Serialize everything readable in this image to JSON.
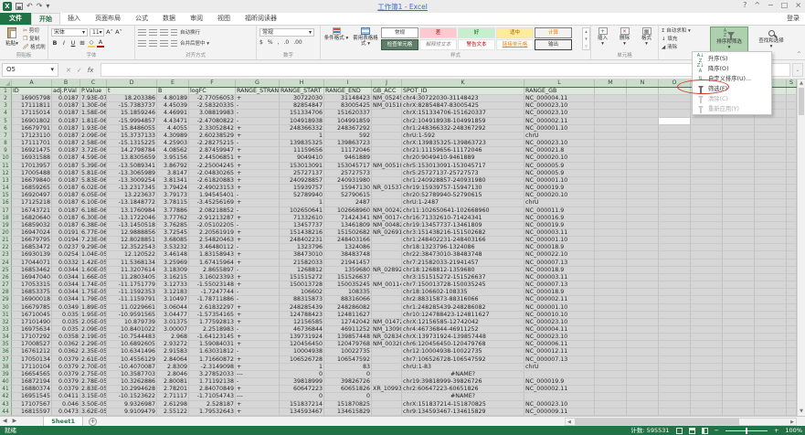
{
  "title": "工作簿1 - Excel",
  "window": {
    "help": "?",
    "collapse": "^",
    "minimize": "−",
    "restore": "□",
    "close": "×",
    "sign_in": "登录"
  },
  "icons": {
    "undo": "↶",
    "redo": "↷",
    "dropdown": "▾",
    "up": "▲",
    "down": "▼",
    "left": "◀",
    "right": "▶",
    "cancel": "✕",
    "enter": "✓",
    "fx": "fx",
    "sigma": "Σ",
    "plus": "+",
    "minus": "−",
    "currency": "$",
    "percent": "%",
    "comma": ",",
    "inc_decimal": ".0",
    "dec_decimal": ".00",
    "bold": "B",
    "italic": "I",
    "underline": "U",
    "font_color": "A",
    "fill_color": "◇",
    "border": "⊞",
    "insert_glyph": "+",
    "delete_glyph": "×",
    "format_glyph": "▦",
    "add_sheet": "+",
    "expand": "⌄",
    "logo": "X"
  },
  "tabs": [
    {
      "label": "文件",
      "file": true,
      "active": false
    },
    {
      "label": "开始",
      "file": false,
      "active": true
    },
    {
      "label": "插入",
      "file": false,
      "active": false
    },
    {
      "label": "页面布局",
      "file": false,
      "active": false
    },
    {
      "label": "公式",
      "file": false,
      "active": false
    },
    {
      "label": "数据",
      "file": false,
      "active": false
    },
    {
      "label": "审阅",
      "file": false,
      "active": false
    },
    {
      "label": "视图",
      "file": false,
      "active": false
    },
    {
      "label": "福昕阅读器",
      "file": false,
      "active": false
    }
  ],
  "ribbon": {
    "clipboard": {
      "label": "剪贴板",
      "paste": "粘贴",
      "cut": "剪切",
      "copy": "复制",
      "painter": "格式刷"
    },
    "font": {
      "label": "字体",
      "family": "宋体",
      "size": "11"
    },
    "alignment": {
      "label": "对齐方式",
      "wrap": "自动换行",
      "merge": "合并后居中"
    },
    "number": {
      "label": "数字",
      "format": "常规"
    },
    "styles": {
      "label": "样式",
      "conditional": "条件格式",
      "table_format": "套用表格格式",
      "gallery": [
        [
          {
            "label": "常规",
            "style": "st-normal"
          },
          {
            "label": "差",
            "style": "st-bad"
          },
          {
            "label": "好",
            "style": "st-good"
          },
          {
            "label": "适中",
            "style": "st-neutral"
          },
          {
            "label": "计算",
            "style": "st-calc"
          }
        ],
        [
          {
            "label": "检查单元格",
            "style": "st-check"
          },
          {
            "label": "解释性文本",
            "style": "st-expl"
          },
          {
            "label": "警告文本",
            "style": "st-warn"
          },
          {
            "label": "链接单元格",
            "style": "st-link"
          },
          {
            "label": "输出",
            "style": "st-output"
          }
        ]
      ]
    },
    "cells": {
      "label": "单元格",
      "insert": "插入",
      "delete": "删除",
      "format": "格式"
    },
    "editing": {
      "label": "编辑",
      "autosum": "自动求和",
      "fill": "填充",
      "clear": "清除",
      "sort_filter": "排序和筛选",
      "find_select": "查找和选择"
    }
  },
  "sort_menu": {
    "items": [
      {
        "label": "升序(S)",
        "icon": "sort-asc",
        "enabled": true,
        "annotated": false
      },
      {
        "label": "降序(O)",
        "icon": "sort-desc",
        "enabled": true,
        "annotated": false
      },
      {
        "label": "自定义排序(U)...",
        "icon": "custom-sort",
        "enabled": true,
        "annotated": false
      },
      {
        "label": "筛选(F)",
        "icon": "filter",
        "enabled": true,
        "annotated": true
      },
      {
        "label": "清除(C)",
        "icon": "clear-filter",
        "enabled": false,
        "annotated": false
      },
      {
        "label": "重新应用(Y)",
        "icon": "reapply",
        "enabled": false,
        "annotated": false
      }
    ]
  },
  "formula_bar": {
    "name_box": "O5",
    "value": ""
  },
  "grid": {
    "col_letters": [
      "A",
      "B",
      "C",
      "D",
      "E",
      "F",
      "G",
      "H",
      "I",
      "J",
      "K",
      "L",
      "M",
      "N",
      "O",
      "P",
      "Q",
      "R",
      "S"
    ],
    "headers": [
      "ID",
      "adj.P.Val",
      "P.Value",
      "t",
      "B",
      "logFC",
      "RANGE_STRAND",
      "RANGE_START",
      "RANGE_END",
      "GB_ACC",
      "SPOT_ID",
      "RANGE_GB"
    ],
    "active_cell": {
      "col": "O",
      "row": 5
    },
    "rows": [
      [
        "16905798",
        "0.0187",
        "7.93E-07",
        "18.203386",
        "4.80189",
        "-2.77056053",
        "+",
        "30722030",
        "31148423",
        "NM_052457",
        "chr4:30722030-31148423",
        "NC_000004.11"
      ],
      [
        "17111811",
        "0.0187",
        "1.30E-06",
        "-15.7383737",
        "4.45039",
        "-2.58320335",
        "-",
        "82854847",
        "83005425",
        "NM_015185",
        "chrX:82854847-83005425",
        "NC_000023.10"
      ],
      [
        "17115014",
        "0.0187",
        "1.58E-06",
        "15.1859246",
        "4.46991",
        "3.08819983",
        "-",
        "151334706",
        "151620337",
        "",
        "chrX:151334706-151620337",
        "NC_000023.10"
      ],
      [
        "16901802",
        "0.0187",
        "1.81E-06",
        "-15.9994857",
        "4.43471",
        "-2.47080822",
        "-",
        "104918938",
        "104991859",
        "",
        "chr2:104918938-104991859",
        "NC_000002.11"
      ],
      [
        "16679791",
        "0.0187",
        "1.93E-06",
        "15.8486055",
        "4.4055",
        "2.33052842",
        "+",
        "248366332",
        "248367292",
        "",
        "chr1:248366332-248367292",
        "NC_000001.10"
      ],
      [
        "17123110",
        "0.0187",
        "2.09E-06",
        "15.3737133",
        "4.30989",
        "2.60238529",
        "+",
        "1",
        "592",
        "",
        "chrU:1-592",
        "chrU"
      ],
      [
        "17111701",
        "0.0187",
        "2.58E-06",
        "-15.1315225",
        "4.25903",
        "-2.28275215",
        "-",
        "139835325",
        "139863723",
        "",
        "chrX:139835325-139863723",
        "NC_000023.10"
      ],
      [
        "16921475",
        "0.0187",
        "3.72E-06",
        "14.2798784",
        "4.08562",
        "2.87459947",
        "+",
        "11159656",
        "11172046",
        "",
        "chr21:11159656-11172046",
        "NC_000021.8"
      ],
      [
        "16931588",
        "0.0187",
        "4.59E-06",
        "13.8305659",
        "3.95156",
        "2.44506851",
        "+",
        "9049410",
        "9461889",
        "",
        "chr20:9049410-9461889",
        "NC_000020.10"
      ],
      [
        "17013957",
        "0.0187",
        "5.39E-06",
        "-13.5089341",
        "3.86792",
        "-2.25004245",
        "+",
        "153013091",
        "153045717",
        "NM_005107",
        "chr5:153013091-153045717",
        "NC_000005.9"
      ],
      [
        "17005488",
        "0.0187",
        "5.81E-06",
        "-13.3065989",
        "3.8147",
        "-2.04830265",
        "+",
        "25727137",
        "25727573",
        "",
        "chr5:25727137-25727573",
        "NC_000005.9"
      ],
      [
        "16679840",
        "0.0187",
        "5.83E-06",
        "-13.3009254",
        "3.81341",
        "-2.61820883",
        "+",
        "240928857",
        "240931980",
        "",
        "chr1:240928857-240931980",
        "NC_000001.10"
      ],
      [
        "16859265",
        "0.0187",
        "6.02E-06",
        "-13.2317345",
        "3.79424",
        "-2.49023153",
        "+",
        "15939757",
        "15947130",
        "NR_015379",
        "chr19:15939757-15947130",
        "NC_000019.9"
      ],
      [
        "16920497",
        "0.0187",
        "6.05E-06",
        "13.223637",
        "3.79173",
        "1.94545401",
        "-",
        "52789940",
        "52790615",
        "",
        "chr20:52789940-52790615",
        "NC_000020.10"
      ],
      [
        "17125218",
        "0.0187",
        "6.10E-06",
        "-13.1848772",
        "3.78115",
        "-3.45256169",
        "+",
        "1",
        "2487",
        "",
        "chrU:1-2487",
        "chrU"
      ],
      [
        "16743721",
        "0.0187",
        "6.18E-06",
        "13.1760984",
        "3.77886",
        "2.08218852",
        "-",
        "102650641",
        "102668960",
        "NM_002421",
        "chr11:102650641-102668960",
        "NC_000011.9"
      ],
      [
        "16820640",
        "0.0187",
        "6.30E-06",
        "-13.1722046",
        "3.77762",
        "-2.91213287",
        "+",
        "71332610",
        "71424341",
        "NM_001740",
        "chr16:71332610-71424341",
        "NC_000016.9"
      ],
      [
        "16859032",
        "0.0187",
        "6.38E-06",
        "-13.1450518",
        "3.76285",
        "-2.05102205",
        "-",
        "13457737",
        "13461809",
        "NM_004823",
        "chr19:13457737-13461809",
        "NC_000019.9"
      ],
      [
        "16947024",
        "0.0191",
        "6.77E-06",
        "12.9888856",
        "3.72545",
        "2.20561919",
        "+",
        "151438216",
        "151502682",
        "NR_026915",
        "chr3:151438216-151502682",
        "NC_000003.11"
      ],
      [
        "16679795",
        "0.0194",
        "7.23E-06",
        "12.8028851",
        "3.68085",
        "2.54820463",
        "+",
        "248402231",
        "248403166",
        "",
        "chr1:248402231-248403166",
        "NC_000001.10"
      ],
      [
        "16853472",
        "0.0237",
        "9.29E-06",
        "12.3522543",
        "3.53232",
        "3.46480112",
        "-",
        "1323796",
        "1324086",
        "",
        "chr18:1323796-1324086",
        "NC_000018.9"
      ],
      [
        "16930139",
        "0.0254",
        "1.04E-05",
        "12.120522",
        "3.46148",
        "1.83158943",
        "+",
        "38473010",
        "38483748",
        "",
        "chr22:38473010-38483748",
        "NC_000022.10"
      ],
      [
        "17044071",
        "0.0332",
        "1.42E-05",
        "11.5368134",
        "3.25969",
        "1.67415964",
        "+",
        "21582033",
        "21941457",
        "",
        "chr7:21582033-21941457",
        "NC_000007.13"
      ],
      [
        "16853462",
        "0.0344",
        "1.60E-05",
        "11.3207614",
        "3.18309",
        "2.8655897",
        "-",
        "1268812",
        "1359680",
        "NR_028925",
        "chr18:1268812-1359680",
        "NC_000018.9"
      ],
      [
        "16947040",
        "0.0344",
        "1.66E-05",
        "11.2803405",
        "3.16215",
        "3.16023393",
        "+",
        "151515272",
        "151526637",
        "",
        "chr3:151515272-151526637",
        "NC_000003.11"
      ],
      [
        "17053315",
        "0.0344",
        "1.74E-05",
        "-11.1751779",
        "3.12733",
        "-1.55023148",
        "+",
        "150013728",
        "150035245",
        "NM_001142808",
        "chr7:150013728-150035245",
        "NC_000007.13"
      ],
      [
        "16853375",
        "0.0344",
        "1.75E-05",
        "-11.1592353",
        "3.12183",
        "-1.7247744",
        "-",
        "106602",
        "108335",
        "",
        "chr18:106602-108335",
        "NC_000018.9"
      ],
      [
        "16900018",
        "0.0344",
        "1.79E-05",
        "-11.1159791",
        "3.10497",
        "-1.78711886",
        "-",
        "88315873",
        "88316066",
        "",
        "chr2:88315873-88316066",
        "NC_000002.11"
      ],
      [
        "16679785",
        "0.0349",
        "1.89E-05",
        "11.0229661",
        "3.06044",
        "2.61832297",
        "+",
        "248285439",
        "248286082",
        "",
        "chr1:248285439-248286082",
        "NC_000001.10"
      ],
      [
        "16710045",
        "0.035",
        "1.95E-05",
        "-10.9591565",
        "3.04477",
        "-1.57354165",
        "+",
        "124788423",
        "124811627",
        "",
        "chr10:124788423-124811627",
        "NC_000010.10"
      ],
      [
        "17101490",
        "0.035",
        "2.05E-05",
        "10.879739",
        "3.01375",
        "1.77592813",
        "+",
        "12156585",
        "12742042",
        "NM_014728",
        "chrX:12156585-12742042",
        "NC_000023.10"
      ],
      [
        "16975634",
        "0.035",
        "2.09E-05",
        "10.8401022",
        "3.00007",
        "2.2518983",
        "-",
        "46736844",
        "46911252",
        "NM_130902",
        "chr4:46736844-46911252",
        "NC_000004.11"
      ],
      [
        "17107292",
        "0.0358",
        "2.19E-05",
        "-10.7544483",
        "2.968",
        "-1.64123145",
        "+",
        "139731924",
        "139857448",
        "NR_028345",
        "chrX:139731924-139857448",
        "NC_000023.10"
      ],
      [
        "17008527",
        "0.0362",
        "2.29E-05",
        "10.6892605",
        "2.93272",
        "1.59084031",
        "+",
        "120456450",
        "120479768",
        "NM_003286",
        "chr6:120456450-120479768",
        "NC_000006.11"
      ],
      [
        "16761212",
        "0.0362",
        "2.35E-05",
        "10.6341496",
        "2.91583",
        "1.63031812",
        "-",
        "10004938",
        "10022735",
        "",
        "chr12:10004938-10022735",
        "NC_000012.11"
      ],
      [
        "17050134",
        "0.0379",
        "2.61E-05",
        "10.4556129",
        "2.84064",
        "1.71660872",
        "+",
        "106526728",
        "106547592",
        "",
        "chr7:106526728-106547592",
        "NC_000007.13"
      ],
      [
        "17110104",
        "0.0379",
        "2.70E-05",
        "-10.4070087",
        "2.8309",
        "-2.3149098",
        "+",
        "1",
        "83",
        "",
        "chrU:1-83",
        "chrU"
      ],
      [
        "16654565",
        "0.0379",
        "2.75E-05",
        "10.3587703",
        "2.8046",
        "3.27852033",
        "---",
        "0",
        "0",
        "",
        "#NAME?",
        ""
      ],
      [
        "16872194",
        "0.0379",
        "2.78E-05",
        "10.3262886",
        "2.80081",
        "1.71192138",
        "-",
        "39818999",
        "39826726",
        "",
        "chr19:39818999-39826726",
        "NC_000019.9"
      ],
      [
        "16880374",
        "0.0379",
        "2.83E-05",
        "10.2994628",
        "2.78201",
        "2.84070849",
        "+",
        "60647223",
        "60651826",
        "XR_109939",
        "chr2:60647223-60651826",
        "NC_000002.11"
      ],
      [
        "16951545",
        "0.0411",
        "3.15E-05",
        "-10.1523622",
        "2.71117",
        "-1.71054743",
        "---",
        "0",
        "0",
        "",
        "#NAME?",
        ""
      ],
      [
        "17107567",
        "0.046",
        "3.50E-05",
        "9.9326987",
        "2.61298",
        "2.528187",
        "+",
        "151837214",
        "151870825",
        "",
        "chrX:151837214-151870825",
        "NC_000023.10"
      ],
      [
        "16815597",
        "0.0473",
        "3.62E-05",
        "9.9109479",
        "2.55122",
        "1.79532643",
        "+",
        "134593467",
        "134615829",
        "",
        "chr9:134593467-134615829",
        "NC_000009.11"
      ]
    ]
  },
  "sheet_tabs": {
    "name": "Sheet1"
  },
  "status_bar": {
    "ready": "就绪",
    "count": "计数: 595531",
    "zoom": "100%"
  }
}
